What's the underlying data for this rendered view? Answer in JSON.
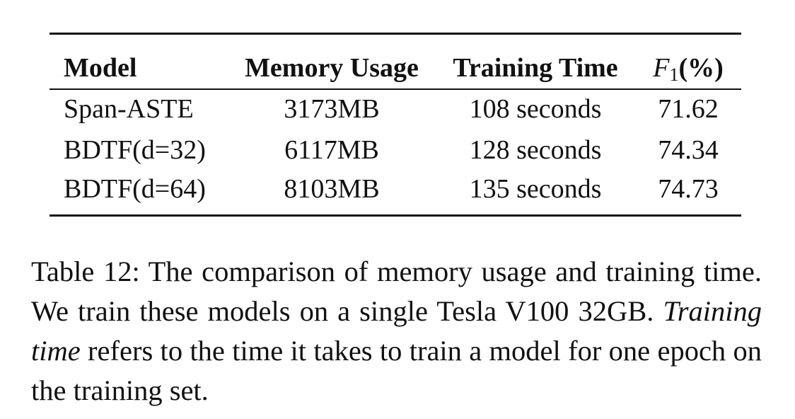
{
  "table": {
    "headers": {
      "model": "Model",
      "memory": "Memory Usage",
      "time": "Training Time",
      "f1_symbol": "F",
      "f1_subscript": "1",
      "f1_unit": "(%)"
    },
    "rows": [
      {
        "model": "Span-ASTE",
        "memory": "3173MB",
        "time": "108 seconds",
        "f1": "71.62"
      },
      {
        "model": "BDTF(d=32)",
        "memory": "6117MB",
        "time": "128 seconds",
        "f1": "74.34"
      },
      {
        "model": "BDTF(d=64)",
        "memory": "8103MB",
        "time": "135 seconds",
        "f1": "74.73"
      }
    ]
  },
  "caption": {
    "label": "Table 12:",
    "text_part1": " The comparison of memory usage and training time.  We train these models on a single Tesla V100 32GB. ",
    "emphasis": "Training time",
    "text_part2": " refers to the time it takes to train a model for one epoch on the training set."
  }
}
